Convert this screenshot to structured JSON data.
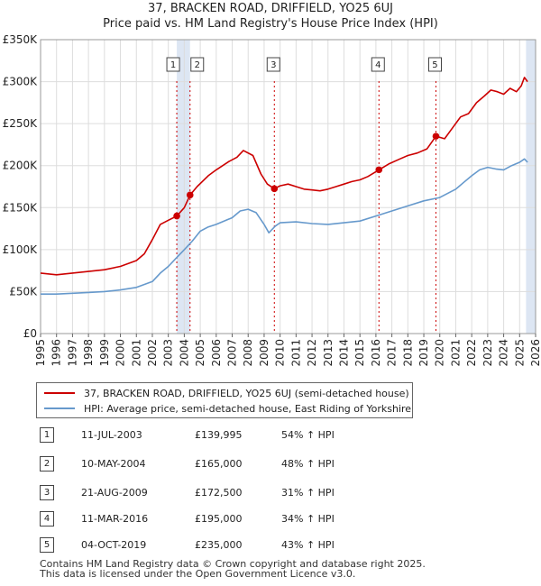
{
  "title": {
    "line1": "37, BRACKEN ROAD, DRIFFIELD, YO25 6UJ",
    "line2": "Price paid vs. HM Land Registry's House Price Index (HPI)"
  },
  "colors": {
    "property": "#cc0000",
    "hpi": "#6699cc",
    "band": "#dde6f3",
    "marker_line": "#cc0000"
  },
  "chart_data": {
    "type": "line",
    "title": "Price paid vs. HM Land Registry's House Price Index (HPI)",
    "xlabel": "",
    "ylabel": "",
    "xlim": [
      1995,
      2026
    ],
    "ylim": [
      0,
      350000
    ],
    "y_ticks": [
      {
        "value": 0,
        "label": "£0"
      },
      {
        "value": 50000,
        "label": "£50K"
      },
      {
        "value": 100000,
        "label": "£100K"
      },
      {
        "value": 150000,
        "label": "£150K"
      },
      {
        "value": 200000,
        "label": "£200K"
      },
      {
        "value": 250000,
        "label": "£250K"
      },
      {
        "value": 300000,
        "label": "£300K"
      },
      {
        "value": 350000,
        "label": "£350K"
      }
    ],
    "x_ticks": [
      "1995",
      "1996",
      "1997",
      "1998",
      "1999",
      "2000",
      "2001",
      "2002",
      "2003",
      "2004",
      "2005",
      "2006",
      "2007",
      "2008",
      "2009",
      "2010",
      "2011",
      "2012",
      "2013",
      "2014",
      "2015",
      "2016",
      "2017",
      "2018",
      "2019",
      "2020",
      "2021",
      "2022",
      "2023",
      "2024",
      "2025",
      "2026"
    ],
    "grid": true,
    "series": [
      {
        "name": "37, BRACKEN ROAD, DRIFFIELD, YO25 6UJ (semi-detached house)",
        "color": "#cc0000",
        "x": [
          1995,
          1996,
          1997,
          1998,
          1999,
          2000,
          2001,
          2001.5,
          2002,
          2002.5,
          2003,
          2003.53,
          2004,
          2004.36,
          2004.8,
          2005.5,
          2006,
          2006.8,
          2007.3,
          2007.7,
          2008.3,
          2008.8,
          2009.2,
          2009.64,
          2010,
          2010.5,
          2011,
          2011.5,
          2012,
          2012.5,
          2013,
          2013.5,
          2014,
          2014.5,
          2015,
          2015.5,
          2016.19,
          2016.8,
          2017.5,
          2018,
          2018.6,
          2019.2,
          2019.76,
          2020.3,
          2020.8,
          2021.3,
          2021.8,
          2022.3,
          2022.8,
          2023.2,
          2023.6,
          2024,
          2024.4,
          2024.8,
          2025.1,
          2025.3,
          2025.5
        ],
        "values": [
          72000,
          70000,
          72000,
          74000,
          76000,
          80000,
          87000,
          95000,
          112000,
          130000,
          135000,
          139995,
          150000,
          165000,
          175000,
          188000,
          195000,
          205000,
          210000,
          218000,
          212000,
          190000,
          178000,
          172500,
          176000,
          178000,
          175000,
          172000,
          171000,
          170000,
          172000,
          175000,
          178000,
          181000,
          183000,
          187000,
          195000,
          202000,
          208000,
          212000,
          215000,
          220000,
          235000,
          232000,
          245000,
          258000,
          262000,
          275000,
          283000,
          290000,
          288000,
          285000,
          292000,
          288000,
          295000,
          305000,
          300000
        ]
      },
      {
        "name": "HPI: Average price, semi-detached house, East Riding of Yorkshire",
        "color": "#6699cc",
        "x": [
          1995,
          1996,
          1997,
          1998,
          1999,
          2000,
          2001,
          2002,
          2002.5,
          2003,
          2003.5,
          2004,
          2004.5,
          2005,
          2005.5,
          2006,
          2007,
          2007.5,
          2008,
          2008.5,
          2009,
          2009.3,
          2009.7,
          2010,
          2011,
          2012,
          2013,
          2014,
          2015,
          2016,
          2017,
          2018,
          2019,
          2020,
          2021,
          2021.5,
          2022,
          2022.5,
          2023,
          2023.5,
          2024,
          2024.5,
          2025,
          2025.3,
          2025.5
        ],
        "values": [
          47000,
          47000,
          48000,
          49000,
          50000,
          52000,
          55000,
          62000,
          72000,
          80000,
          90000,
          100000,
          110000,
          122000,
          127000,
          130000,
          138000,
          146000,
          148000,
          144000,
          130000,
          120000,
          128000,
          132000,
          133000,
          131000,
          130000,
          132000,
          134000,
          140000,
          146000,
          152000,
          158000,
          162000,
          172000,
          180000,
          188000,
          195000,
          198000,
          196000,
          195000,
          200000,
          204000,
          208000,
          204000
        ]
      }
    ],
    "sales": [
      {
        "label": "1",
        "x": 2003.53,
        "y": 139995
      },
      {
        "label": "2",
        "x": 2004.36,
        "y": 165000
      },
      {
        "label": "3",
        "x": 2009.64,
        "y": 172500
      },
      {
        "label": "4",
        "x": 2016.19,
        "y": 195000
      },
      {
        "label": "5",
        "x": 2019.76,
        "y": 235000
      }
    ],
    "shaded_bands": [
      [
        2003.53,
        2004.36
      ],
      [
        2025.4,
        2026
      ]
    ]
  },
  "legend": {
    "property": "37, BRACKEN ROAD, DRIFFIELD, YO25 6UJ (semi-detached house)",
    "hpi": "HPI: Average price, semi-detached house, East Riding of Yorkshire"
  },
  "transactions": [
    {
      "num": "1",
      "date": "11-JUL-2003",
      "price": "£139,995",
      "hpi": "54% ↑ HPI"
    },
    {
      "num": "2",
      "date": "10-MAY-2004",
      "price": "£165,000",
      "hpi": "48% ↑ HPI"
    },
    {
      "num": "3",
      "date": "21-AUG-2009",
      "price": "£172,500",
      "hpi": "31% ↑ HPI"
    },
    {
      "num": "4",
      "date": "11-MAR-2016",
      "price": "£195,000",
      "hpi": "34% ↑ HPI"
    },
    {
      "num": "5",
      "date": "04-OCT-2019",
      "price": "£235,000",
      "hpi": "43% ↑ HPI"
    }
  ],
  "footer": {
    "line1": "Contains HM Land Registry data © Crown copyright and database right 2025.",
    "line2": "This data is licensed under the Open Government Licence v3.0."
  }
}
